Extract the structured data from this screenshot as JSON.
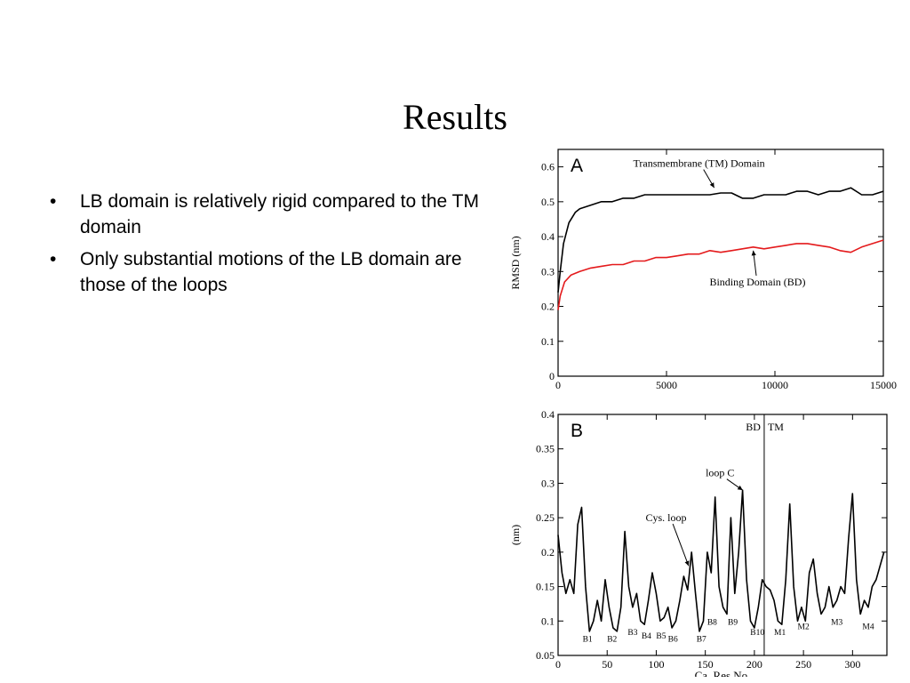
{
  "slide": {
    "title": "Results",
    "bullets": [
      "LB domain is relatively rigid compared to the TM domain",
      "Only substantial motions of the LB domain are those of the loops"
    ]
  },
  "chart_data": [
    {
      "panel": "A",
      "type": "line",
      "title": "",
      "xlabel": "",
      "ylabel": "RMSD (nm)",
      "xlim": [
        0,
        15000
      ],
      "ylim": [
        0,
        0.65
      ],
      "xticks": [
        0,
        5000,
        10000,
        15000
      ],
      "yticks": [
        0,
        0.1,
        0.2,
        0.3,
        0.4,
        0.5,
        0.6
      ],
      "annotations": [
        {
          "text": "Transmembrane (TM) Domain",
          "x": 6500,
          "y": 0.6,
          "arrow_to": [
            7200,
            0.54
          ]
        },
        {
          "text": "Binding Domain (BD)",
          "x": 9200,
          "y": 0.26,
          "arrow_to": [
            9000,
            0.36
          ]
        }
      ],
      "series": [
        {
          "label": "Transmembrane (TM) Domain",
          "color": "#000000",
          "x": [
            0,
            100,
            250,
            500,
            800,
            1000,
            1500,
            2000,
            2500,
            3000,
            3500,
            4000,
            4500,
            5000,
            5500,
            6000,
            6500,
            7000,
            7500,
            8000,
            8500,
            9000,
            9500,
            10000,
            10500,
            11000,
            11500,
            12000,
            12500,
            13000,
            13500,
            14000,
            14500,
            15000
          ],
          "y": [
            0.24,
            0.3,
            0.38,
            0.44,
            0.47,
            0.48,
            0.49,
            0.5,
            0.5,
            0.51,
            0.51,
            0.52,
            0.52,
            0.52,
            0.52,
            0.52,
            0.52,
            0.52,
            0.525,
            0.525,
            0.51,
            0.51,
            0.52,
            0.52,
            0.52,
            0.53,
            0.53,
            0.52,
            0.53,
            0.53,
            0.54,
            0.52,
            0.52,
            0.53
          ]
        },
        {
          "label": "Binding Domain (BD)",
          "color": "#e41a1c",
          "x": [
            0,
            100,
            300,
            600,
            1000,
            1500,
            2000,
            2500,
            3000,
            3500,
            4000,
            4500,
            5000,
            5500,
            6000,
            6500,
            7000,
            7500,
            8000,
            8500,
            9000,
            9500,
            10000,
            10500,
            11000,
            11500,
            12000,
            12500,
            13000,
            13500,
            14000,
            14500,
            15000
          ],
          "y": [
            0.19,
            0.23,
            0.27,
            0.29,
            0.3,
            0.31,
            0.315,
            0.32,
            0.32,
            0.33,
            0.33,
            0.34,
            0.34,
            0.345,
            0.35,
            0.35,
            0.36,
            0.355,
            0.36,
            0.365,
            0.37,
            0.365,
            0.37,
            0.375,
            0.38,
            0.38,
            0.375,
            0.37,
            0.36,
            0.355,
            0.37,
            0.38,
            0.39
          ]
        }
      ]
    },
    {
      "panel": "B",
      "type": "line",
      "title": "",
      "xlabel": "Ca. Res.No.",
      "ylabel": "(nm)",
      "xlim": [
        0,
        335
      ],
      "ylim": [
        0.05,
        0.4
      ],
      "xticks": [
        0,
        50,
        100,
        150,
        200,
        250,
        300
      ],
      "yticks": [
        0.05,
        0.1,
        0.15,
        0.2,
        0.25,
        0.3,
        0.35,
        0.4
      ],
      "divider_x": 210,
      "region_labels": [
        "BD",
        "TM"
      ],
      "annotations": [
        {
          "text": "loop C",
          "x": 165,
          "y": 0.31,
          "arrow_to": [
            188,
            0.29
          ]
        },
        {
          "text": "Cys. loop",
          "x": 110,
          "y": 0.245,
          "arrow_to": [
            133,
            0.18
          ]
        }
      ],
      "point_labels": [
        {
          "text": "B1",
          "x": 30,
          "y": 0.075
        },
        {
          "text": "B2",
          "x": 55,
          "y": 0.075
        },
        {
          "text": "B3",
          "x": 76,
          "y": 0.085
        },
        {
          "text": "B4",
          "x": 90,
          "y": 0.08
        },
        {
          "text": "B5",
          "x": 105,
          "y": 0.08
        },
        {
          "text": "B6",
          "x": 117,
          "y": 0.075
        },
        {
          "text": "B7",
          "x": 146,
          "y": 0.075
        },
        {
          "text": "B8",
          "x": 157,
          "y": 0.1
        },
        {
          "text": "B9",
          "x": 178,
          "y": 0.1
        },
        {
          "text": "B10",
          "x": 203,
          "y": 0.085
        },
        {
          "text": "M1",
          "x": 226,
          "y": 0.085
        },
        {
          "text": "M2",
          "x": 250,
          "y": 0.093
        },
        {
          "text": "M3",
          "x": 284,
          "y": 0.1
        },
        {
          "text": "M4",
          "x": 316,
          "y": 0.093
        }
      ],
      "series": [
        {
          "label": "",
          "color": "#000000",
          "x": [
            0,
            4,
            8,
            12,
            16,
            20,
            24,
            28,
            32,
            36,
            40,
            44,
            48,
            52,
            56,
            60,
            64,
            68,
            72,
            76,
            80,
            84,
            88,
            92,
            96,
            100,
            104,
            108,
            112,
            116,
            120,
            124,
            128,
            132,
            136,
            140,
            144,
            148,
            152,
            156,
            160,
            164,
            168,
            172,
            176,
            180,
            184,
            188,
            192,
            196,
            200,
            204,
            208,
            212,
            216,
            220,
            224,
            228,
            232,
            236,
            240,
            244,
            248,
            252,
            256,
            260,
            264,
            268,
            272,
            276,
            280,
            284,
            288,
            292,
            296,
            300,
            304,
            308,
            312,
            316,
            320,
            324,
            328,
            332
          ],
          "y": [
            0.225,
            0.17,
            0.14,
            0.16,
            0.14,
            0.24,
            0.265,
            0.15,
            0.085,
            0.1,
            0.13,
            0.1,
            0.16,
            0.12,
            0.09,
            0.085,
            0.12,
            0.23,
            0.15,
            0.12,
            0.14,
            0.1,
            0.095,
            0.13,
            0.17,
            0.14,
            0.1,
            0.105,
            0.12,
            0.09,
            0.1,
            0.13,
            0.165,
            0.145,
            0.2,
            0.14,
            0.085,
            0.1,
            0.2,
            0.17,
            0.28,
            0.15,
            0.12,
            0.11,
            0.25,
            0.14,
            0.2,
            0.29,
            0.16,
            0.1,
            0.09,
            0.12,
            0.16,
            0.15,
            0.145,
            0.13,
            0.1,
            0.095,
            0.16,
            0.27,
            0.15,
            0.1,
            0.12,
            0.1,
            0.17,
            0.19,
            0.14,
            0.11,
            0.12,
            0.15,
            0.12,
            0.13,
            0.15,
            0.14,
            0.22,
            0.285,
            0.16,
            0.11,
            0.13,
            0.12,
            0.15,
            0.16,
            0.18,
            0.2
          ]
        }
      ]
    }
  ]
}
